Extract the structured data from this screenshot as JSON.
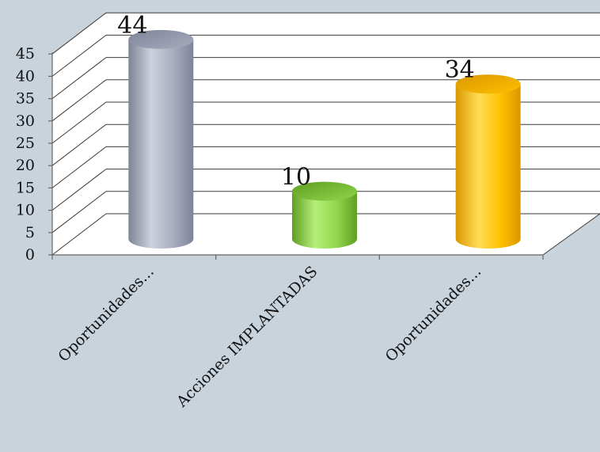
{
  "chart_data": {
    "type": "bar",
    "style": "3d-cylinder",
    "title": "",
    "xlabel": "",
    "ylabel": "",
    "ylim": [
      0,
      45
    ],
    "yticks": [
      0,
      5,
      10,
      15,
      20,
      25,
      30,
      35,
      40,
      45
    ],
    "grid": true,
    "legend": "none",
    "categories": [
      "Oportunidades...",
      "Acciones IMPLANTADAS",
      "Oportunidades..."
    ],
    "values": [
      44,
      10,
      34
    ],
    "data_labels": [
      "44",
      "10",
      "34"
    ],
    "colors": [
      "#a7adbf",
      "#8fd64a",
      "#ffc000"
    ],
    "colors_dark": [
      "#7e8497",
      "#5f9e22",
      "#d99700"
    ],
    "colors_light": [
      "#cdd1dc",
      "#b5ee7a",
      "#ffdd55"
    ],
    "grid_color": "#3a3a3a",
    "panel_color": "#ffffff"
  }
}
